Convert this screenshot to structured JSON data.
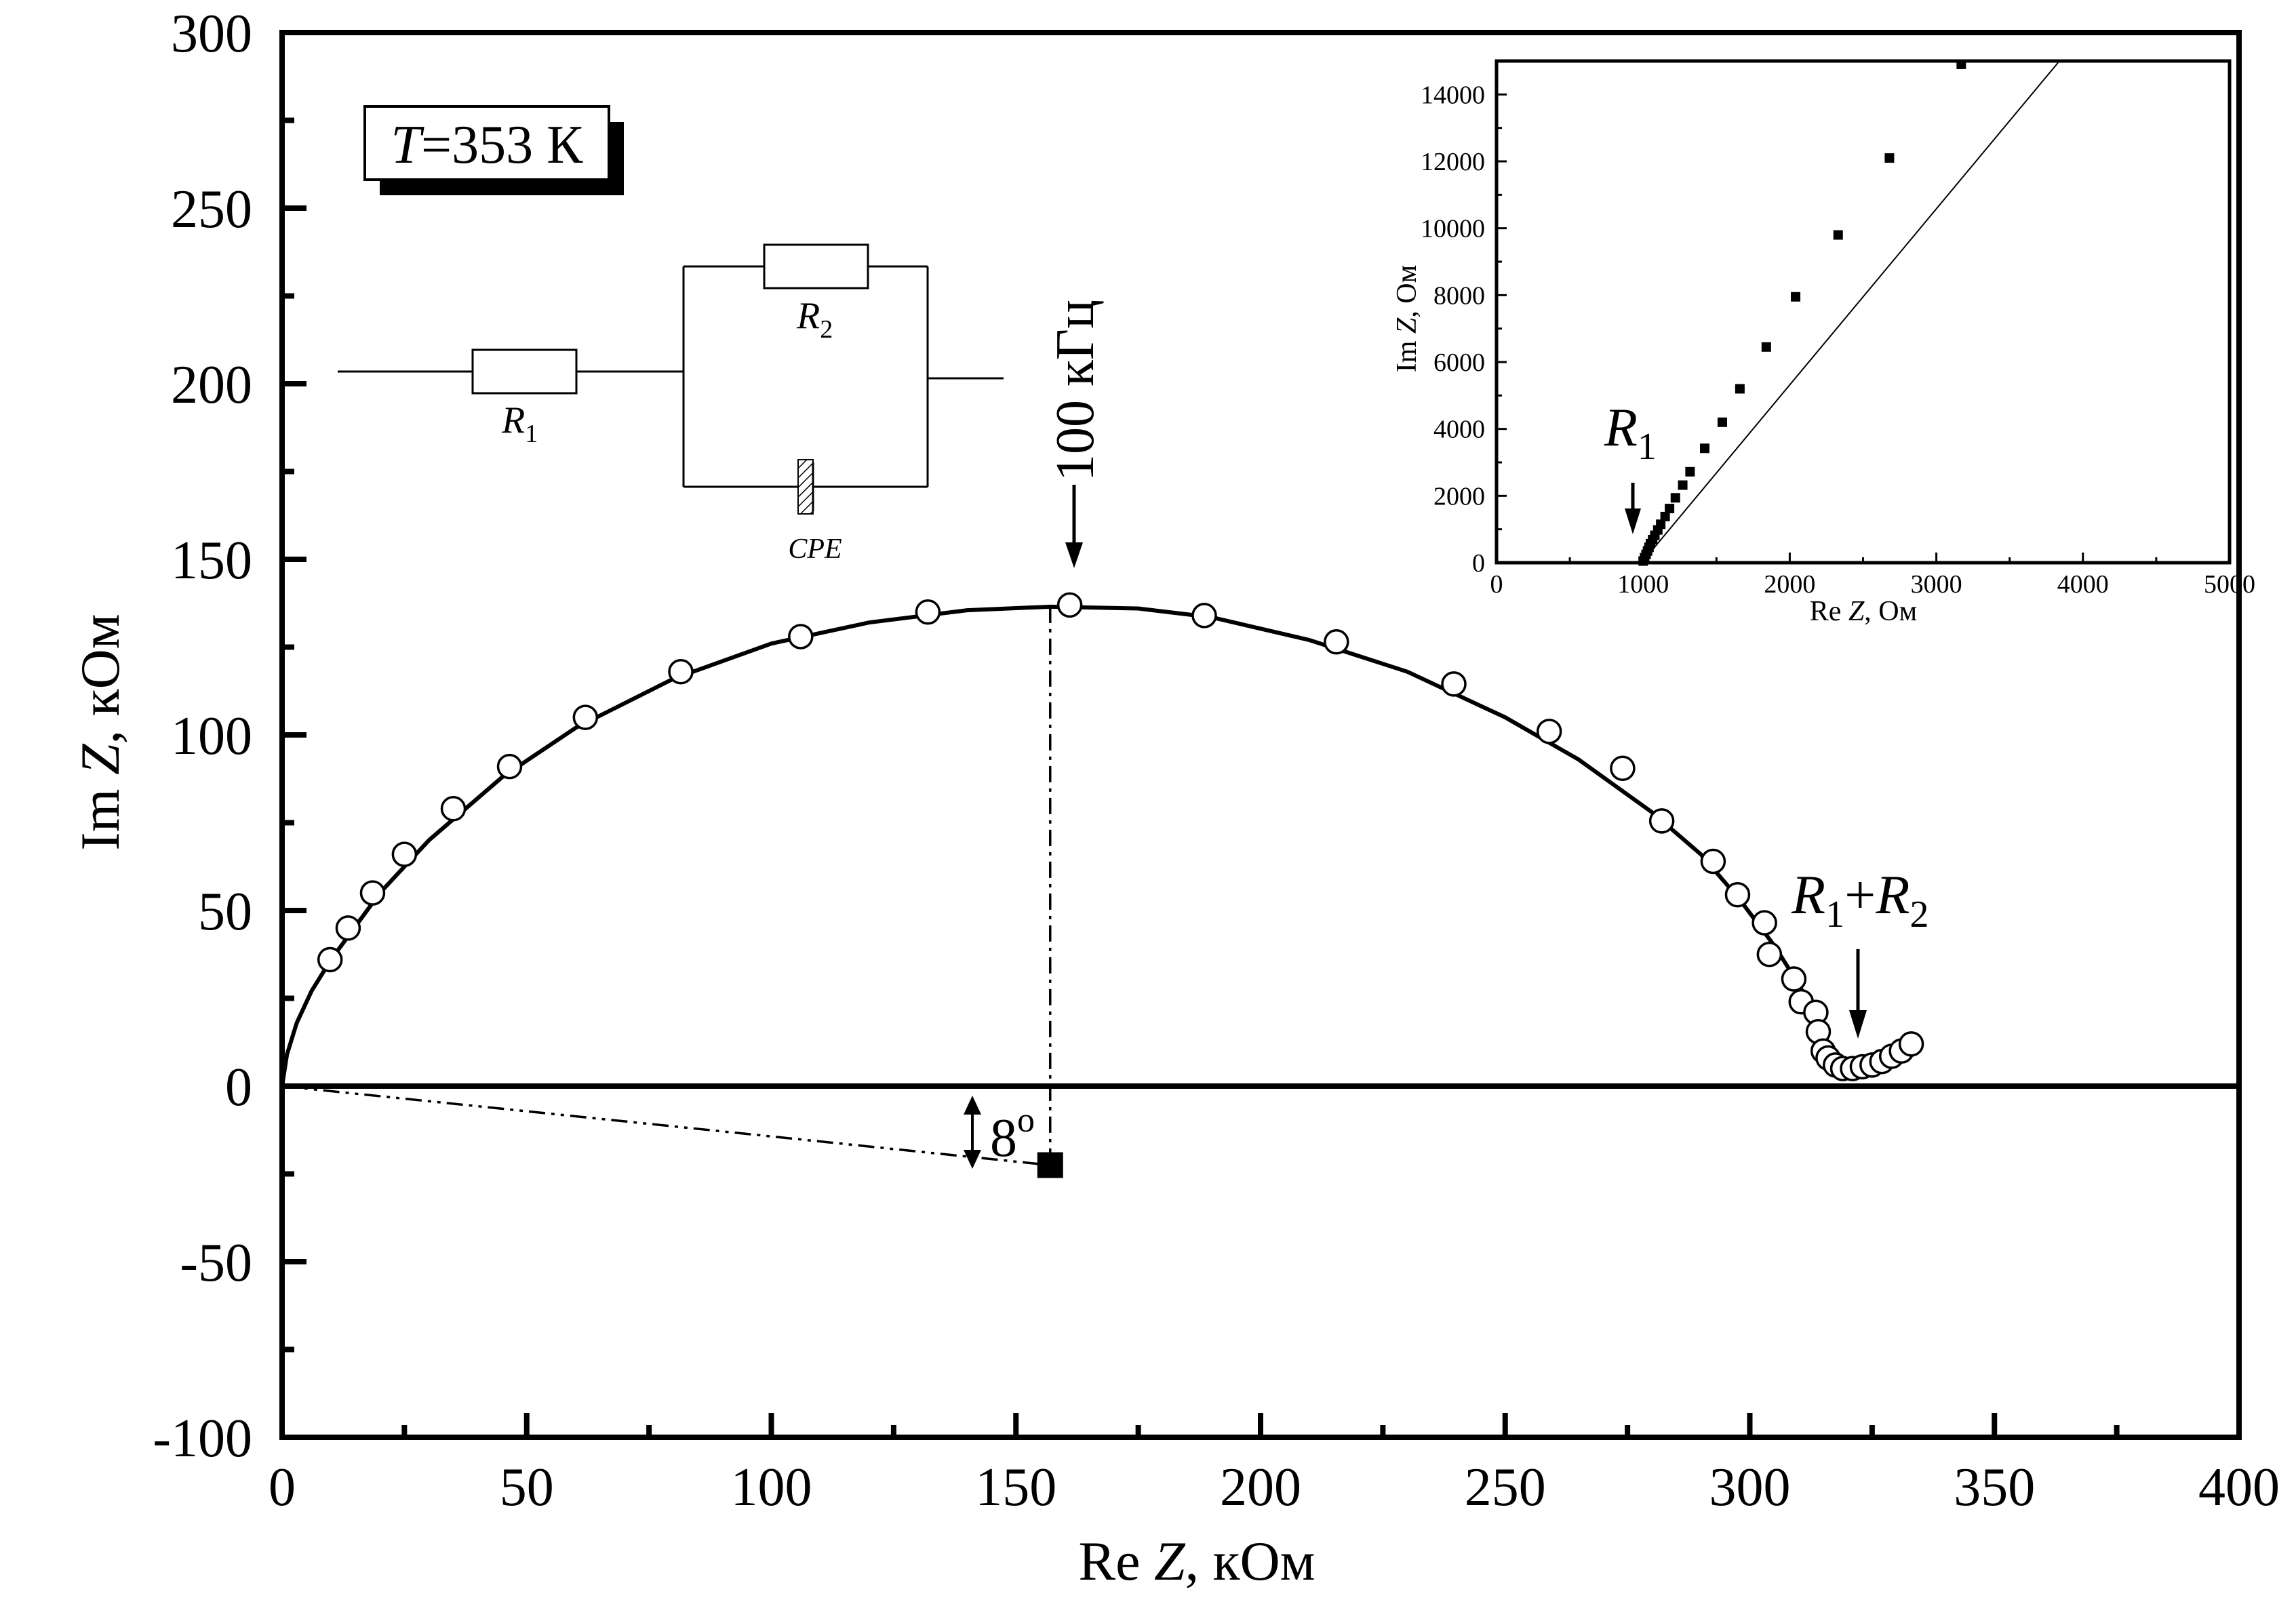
{
  "chart_data": [
    {
      "type": "scatter",
      "title": "",
      "xlabel_prefix": "Re ",
      "xlabel_var": "Z",
      "xlabel_suffix": ", кОм",
      "ylabel_prefix": "Im ",
      "ylabel_var": "Z",
      "ylabel_suffix": ", кОм",
      "xlim": [
        0,
        400
      ],
      "ylim": [
        -100,
        300
      ],
      "xticks": [
        0,
        50,
        100,
        150,
        200,
        250,
        300,
        350,
        400
      ],
      "yticks": [
        -100,
        -50,
        0,
        50,
        100,
        150,
        200,
        250,
        300
      ],
      "grid": false,
      "temperature_label": {
        "var": "T",
        "text": "=353 К"
      },
      "series": [
        {
          "marker": "open-circle",
          "points": [
            [
              9.8,
              36
            ],
            [
              13.5,
              45
            ],
            [
              18.5,
              55
            ],
            [
              25,
              66
            ],
            [
              35,
              79
            ],
            [
              46.5,
              91
            ],
            [
              62,
              105
            ],
            [
              81.5,
              118
            ],
            [
              106,
              128
            ],
            [
              132,
              135
            ],
            [
              161,
              137
            ],
            [
              188.5,
              134
            ],
            [
              215.5,
              126.5
            ],
            [
              239.5,
              114.5
            ],
            [
              259,
              101
            ],
            [
              274,
              90.5
            ],
            [
              282,
              75.5
            ],
            [
              292.5,
              64
            ],
            [
              297.5,
              54.5
            ],
            [
              303,
              46.5
            ],
            [
              304,
              37.5
            ],
            [
              309,
              30.5
            ],
            [
              310.5,
              24
            ],
            [
              313.5,
              21
            ],
            [
              314,
              15.5
            ],
            [
              315,
              10
            ],
            [
              316,
              8
            ],
            [
              317.5,
              6
            ],
            [
              319,
              5
            ],
            [
              321,
              5
            ],
            [
              323,
              5.5
            ],
            [
              325,
              6
            ],
            [
              327,
              7
            ],
            [
              329,
              8.5
            ],
            [
              331,
              10
            ],
            [
              333,
              12
            ]
          ]
        },
        {
          "marker": "line",
          "points": [
            [
              0,
              0
            ],
            [
              1,
              9
            ],
            [
              3,
              18
            ],
            [
              6,
              27
            ],
            [
              10,
              36
            ],
            [
              20,
              55
            ],
            [
              30,
              70
            ],
            [
              45,
              88
            ],
            [
              60,
              102
            ],
            [
              80,
              116
            ],
            [
              100,
              126
            ],
            [
              120,
              132
            ],
            [
              140,
              135.5
            ],
            [
              157,
              136.5
            ],
            [
              175,
              136
            ],
            [
              190,
              133.5
            ],
            [
              210,
              127
            ],
            [
              230,
              118
            ],
            [
              250,
              105
            ],
            [
              265,
              93
            ],
            [
              280,
              78
            ],
            [
              290,
              66
            ],
            [
              298,
              53
            ],
            [
              305,
              40
            ],
            [
              310,
              29
            ],
            [
              314,
              18
            ],
            [
              316.5,
              10
            ],
            [
              318,
              5
            ]
          ]
        }
      ],
      "center_point": {
        "x": 157,
        "y": -22.5
      },
      "peak_label": "100 кГц",
      "angle_label": "8",
      "angle_unit": "o",
      "r_sum_label": {
        "r": "R",
        "sub1": "1",
        "plus": "+",
        "sub2": "2"
      },
      "circuit": {
        "r1": "R",
        "r1_sub": "1",
        "r2": "R",
        "r2_sub": "2",
        "cpe": "CPE"
      }
    },
    {
      "type": "scatter",
      "title": "",
      "xlabel_prefix": "Re ",
      "xlabel_var": "Z",
      "xlabel_suffix": ", Ом",
      "ylabel_prefix": "Im ",
      "ylabel_var": "Z",
      "ylabel_suffix": ", Ом",
      "xlim": [
        0,
        5000
      ],
      "ylim": [
        0,
        15000
      ],
      "xticks": [
        0,
        1000,
        2000,
        3000,
        4000,
        5000
      ],
      "yticks": [
        0,
        2000,
        4000,
        6000,
        8000,
        10000,
        12000,
        14000
      ],
      "grid": false,
      "r1_label": {
        "r": "R",
        "sub": "1"
      },
      "series": [
        {
          "marker": "filled-square",
          "points": [
            [
              1000,
              50
            ],
            [
              1010,
              150
            ],
            [
              1020,
              250
            ],
            [
              1030,
              350
            ],
            [
              1040,
              460
            ],
            [
              1050,
              570
            ],
            [
              1065,
              690
            ],
            [
              1080,
              820
            ],
            [
              1100,
              980
            ],
            [
              1120,
              1150
            ],
            [
              1150,
              1380
            ],
            [
              1180,
              1620
            ],
            [
              1220,
              1940
            ],
            [
              1270,
              2320
            ],
            [
              1320,
              2720
            ],
            [
              1420,
              3420
            ],
            [
              1540,
              4200
            ],
            [
              1660,
              5200
            ],
            [
              1840,
              6450
            ],
            [
              2040,
              7950
            ],
            [
              2330,
              9800
            ],
            [
              2680,
              12100
            ],
            [
              3170,
              14900
            ]
          ]
        },
        {
          "marker": "line",
          "points": [
            [
              990,
              0
            ],
            [
              3830,
              14950
            ]
          ]
        }
      ]
    }
  ]
}
